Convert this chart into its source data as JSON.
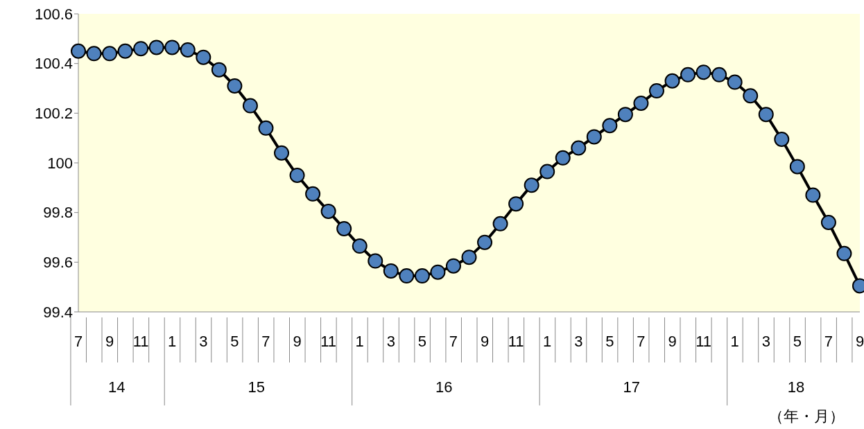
{
  "chart_data": {
    "type": "line",
    "xlabel": "（年・月）",
    "categories": [
      "7",
      null,
      "9",
      null,
      "11",
      null,
      "1",
      null,
      "3",
      null,
      "5",
      null,
      "7",
      null,
      "9",
      null,
      "11",
      null,
      "1",
      null,
      "3",
      null,
      "5",
      null,
      "7",
      null,
      "9",
      null,
      "11",
      null,
      "1",
      null,
      "3",
      null,
      "5",
      null,
      "7",
      null,
      "9",
      null,
      "11",
      null,
      "1",
      null,
      "3",
      null,
      "5",
      null,
      "7",
      null,
      "9"
    ],
    "annotations": [
      "14",
      "15",
      "16",
      "17",
      "18"
    ],
    "series": [
      {
        "color": "#4f81bd",
        "values": [
          100.45,
          100.44,
          100.44,
          100.45,
          100.46,
          100.465,
          100.465,
          100.455,
          100.425,
          100.375,
          100.31,
          100.23,
          100.14,
          100.04,
          99.95,
          99.875,
          99.805,
          99.735,
          99.665,
          99.605,
          99.565,
          99.545,
          99.545,
          99.56,
          99.585,
          99.62,
          99.68,
          99.755,
          99.835,
          99.91,
          99.965,
          100.02,
          100.06,
          100.105,
          100.15,
          100.195,
          100.24,
          100.29,
          100.33,
          100.355,
          100.365,
          100.355,
          100.325,
          100.27,
          100.195,
          100.095,
          99.985,
          99.87,
          99.76,
          99.635,
          99.505
        ]
      }
    ],
    "ylim": [
      99.4,
      100.6
    ],
    "yticks": [
      99.4,
      99.6,
      99.8,
      100,
      100.2,
      100.4,
      100.6
    ],
    "marker": "circle",
    "line_style": "solid"
  }
}
